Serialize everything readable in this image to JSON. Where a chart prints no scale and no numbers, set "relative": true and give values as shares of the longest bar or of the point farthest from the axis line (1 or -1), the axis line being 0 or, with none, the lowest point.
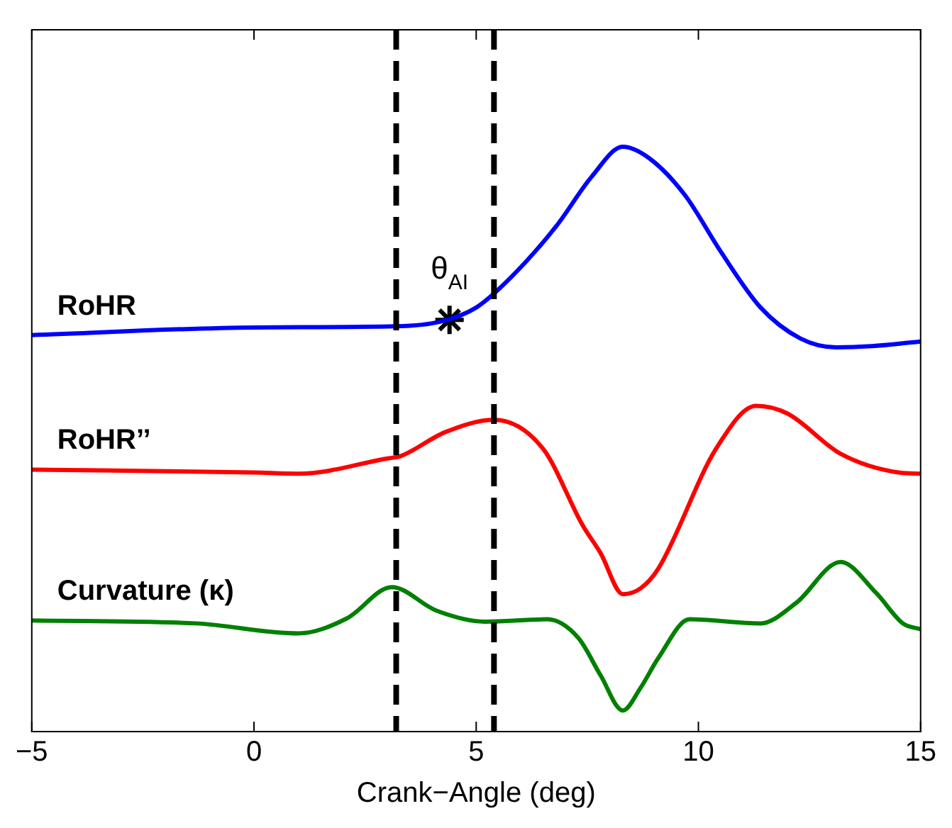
{
  "chart_data": {
    "type": "line",
    "relative": true,
    "xlabel": "Crank−Angle (deg)",
    "xlim": [
      -5,
      15
    ],
    "xticks": [
      {
        "value": -5,
        "label": "−5"
      },
      0,
      5,
      10,
      15
    ],
    "grid": false,
    "legend": false,
    "tick_labels": "x",
    "line_style": "solid",
    "marker": "none",
    "series": [
      {
        "name": "RoHR",
        "color": "#0000ff",
        "x": [
          -5,
          0,
          3.2,
          4.2,
          5,
          5.8,
          6.8,
          7.6,
          8.3,
          8.9,
          9.7,
          10.5,
          11.4,
          12.3,
          13.1,
          13.9,
          15
        ],
        "values": [
          0.678,
          0.691,
          0.693,
          0.701,
          0.725,
          0.778,
          0.864,
          0.949,
          1.0,
          0.98,
          0.917,
          0.821,
          0.725,
          0.672,
          0.657,
          0.659,
          0.667
        ]
      },
      {
        "name": "RoHR’’",
        "color": "#ff0000",
        "x": [
          -5,
          0,
          1.0,
          3.0,
          3.3,
          4.3,
          5.4,
          6.5,
          7.4,
          7.8,
          8.3,
          8.7,
          9.1,
          10.4,
          11.3,
          12.0,
          13.2,
          14.5,
          15
        ],
        "values": [
          0.448,
          0.443,
          0.441,
          0.467,
          0.471,
          0.512,
          0.533,
          0.484,
          0.352,
          0.305,
          0.235,
          0.245,
          0.279,
          0.484,
          0.557,
          0.544,
          0.475,
          0.443,
          0.441
        ]
      },
      {
        "name": "Curvature (κ)",
        "color": "#008000",
        "x": [
          -5,
          -1.3,
          1.0,
          2.1,
          3.1,
          4.1,
          5.2,
          6.6,
          7.3,
          7.8,
          8.3,
          8.7,
          9.1,
          9.8,
          11.4,
          12.2,
          13.2,
          14.0,
          14.6,
          15
        ],
        "values": [
          0.19,
          0.185,
          0.168,
          0.194,
          0.247,
          0.207,
          0.188,
          0.192,
          0.16,
          0.096,
          0.036,
          0.075,
          0.126,
          0.192,
          0.185,
          0.22,
          0.29,
          0.237,
          0.185,
          0.175
        ]
      },
      {
        "type": "scatter",
        "color": "#000000",
        "marker": "cross",
        "x": [
          4.4
        ],
        "values": [
          0.704
        ]
      }
    ],
    "ref_lines": [
      {
        "axis": "x",
        "value": 3.2,
        "color": "#000000",
        "line_style": "dashed"
      },
      {
        "axis": "x",
        "value": 5.4,
        "color": "#000000",
        "line_style": "dashed"
      }
    ],
    "annotations": [
      {
        "text": "θ$_{AI}$",
        "x": 4.4,
        "y": 0.704
      }
    ]
  }
}
